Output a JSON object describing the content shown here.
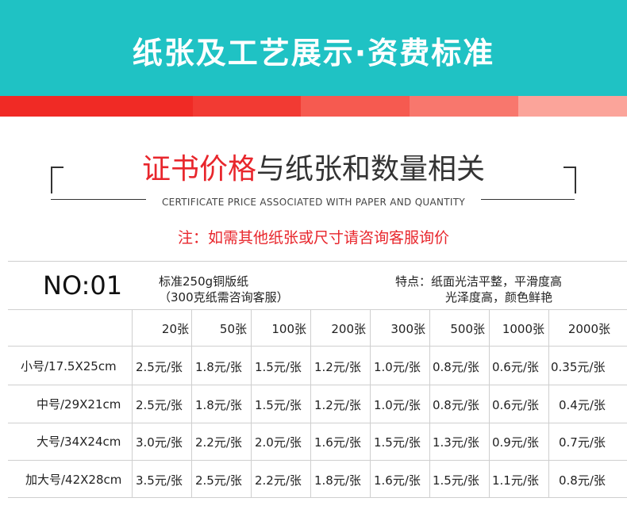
{
  "banner": {
    "title": "纸张及工艺展示·资费标准"
  },
  "heading": {
    "red": "证书价格",
    "dark": "与纸张和数量相关",
    "subtitle": "CERTIFICATE PRICE ASSOCIATED WITH PAPER AND QUANTITY"
  },
  "note": "注：如需其他纸张或尺寸请咨询客服询价",
  "product": {
    "no": "NO:01",
    "paper_line1": "标准250g铜版纸",
    "paper_line2": "（300克纸需咨询客服）",
    "feature_line1": "特点：纸面光洁平整，平滑度高",
    "feature_line2": "光泽度高，颜色鲜艳"
  },
  "table": {
    "quantities": [
      "20张",
      "50张",
      "100张",
      "200张",
      "300张",
      "500张",
      "1000张",
      "2000张"
    ],
    "rows": [
      {
        "size": "小号/17.5X25cm",
        "prices": [
          "2.5元/张",
          "1.8元/张",
          "1.5元/张",
          "1.2元/张",
          "1.0元/张",
          "0.8元/张",
          "0.6元/张",
          "0.35元/张"
        ]
      },
      {
        "size": "中号/29X21cm",
        "prices": [
          "2.5元/张",
          "1.8元/张",
          "1.5元/张",
          "1.2元/张",
          "1.0元/张",
          "0.8元/张",
          "0.6元/张",
          "0.4元/张"
        ]
      },
      {
        "size": "大号/34X24cm",
        "prices": [
          "3.0元/张",
          "2.2元/张",
          "2.0元/张",
          "1.6元/张",
          "1.5元/张",
          "1.3元/张",
          "0.9元/张",
          "0.7元/张"
        ]
      },
      {
        "size": "加大号/42X28cm",
        "prices": [
          "3.5元/张",
          "2.5元/张",
          "2.2元/张",
          "1.8元/张",
          "1.6元/张",
          "1.5元/张",
          "1.1元/张",
          "0.8元/张"
        ]
      }
    ]
  },
  "colors": {
    "banner": "#1fc2c4",
    "accent_red": "#e8262c"
  }
}
